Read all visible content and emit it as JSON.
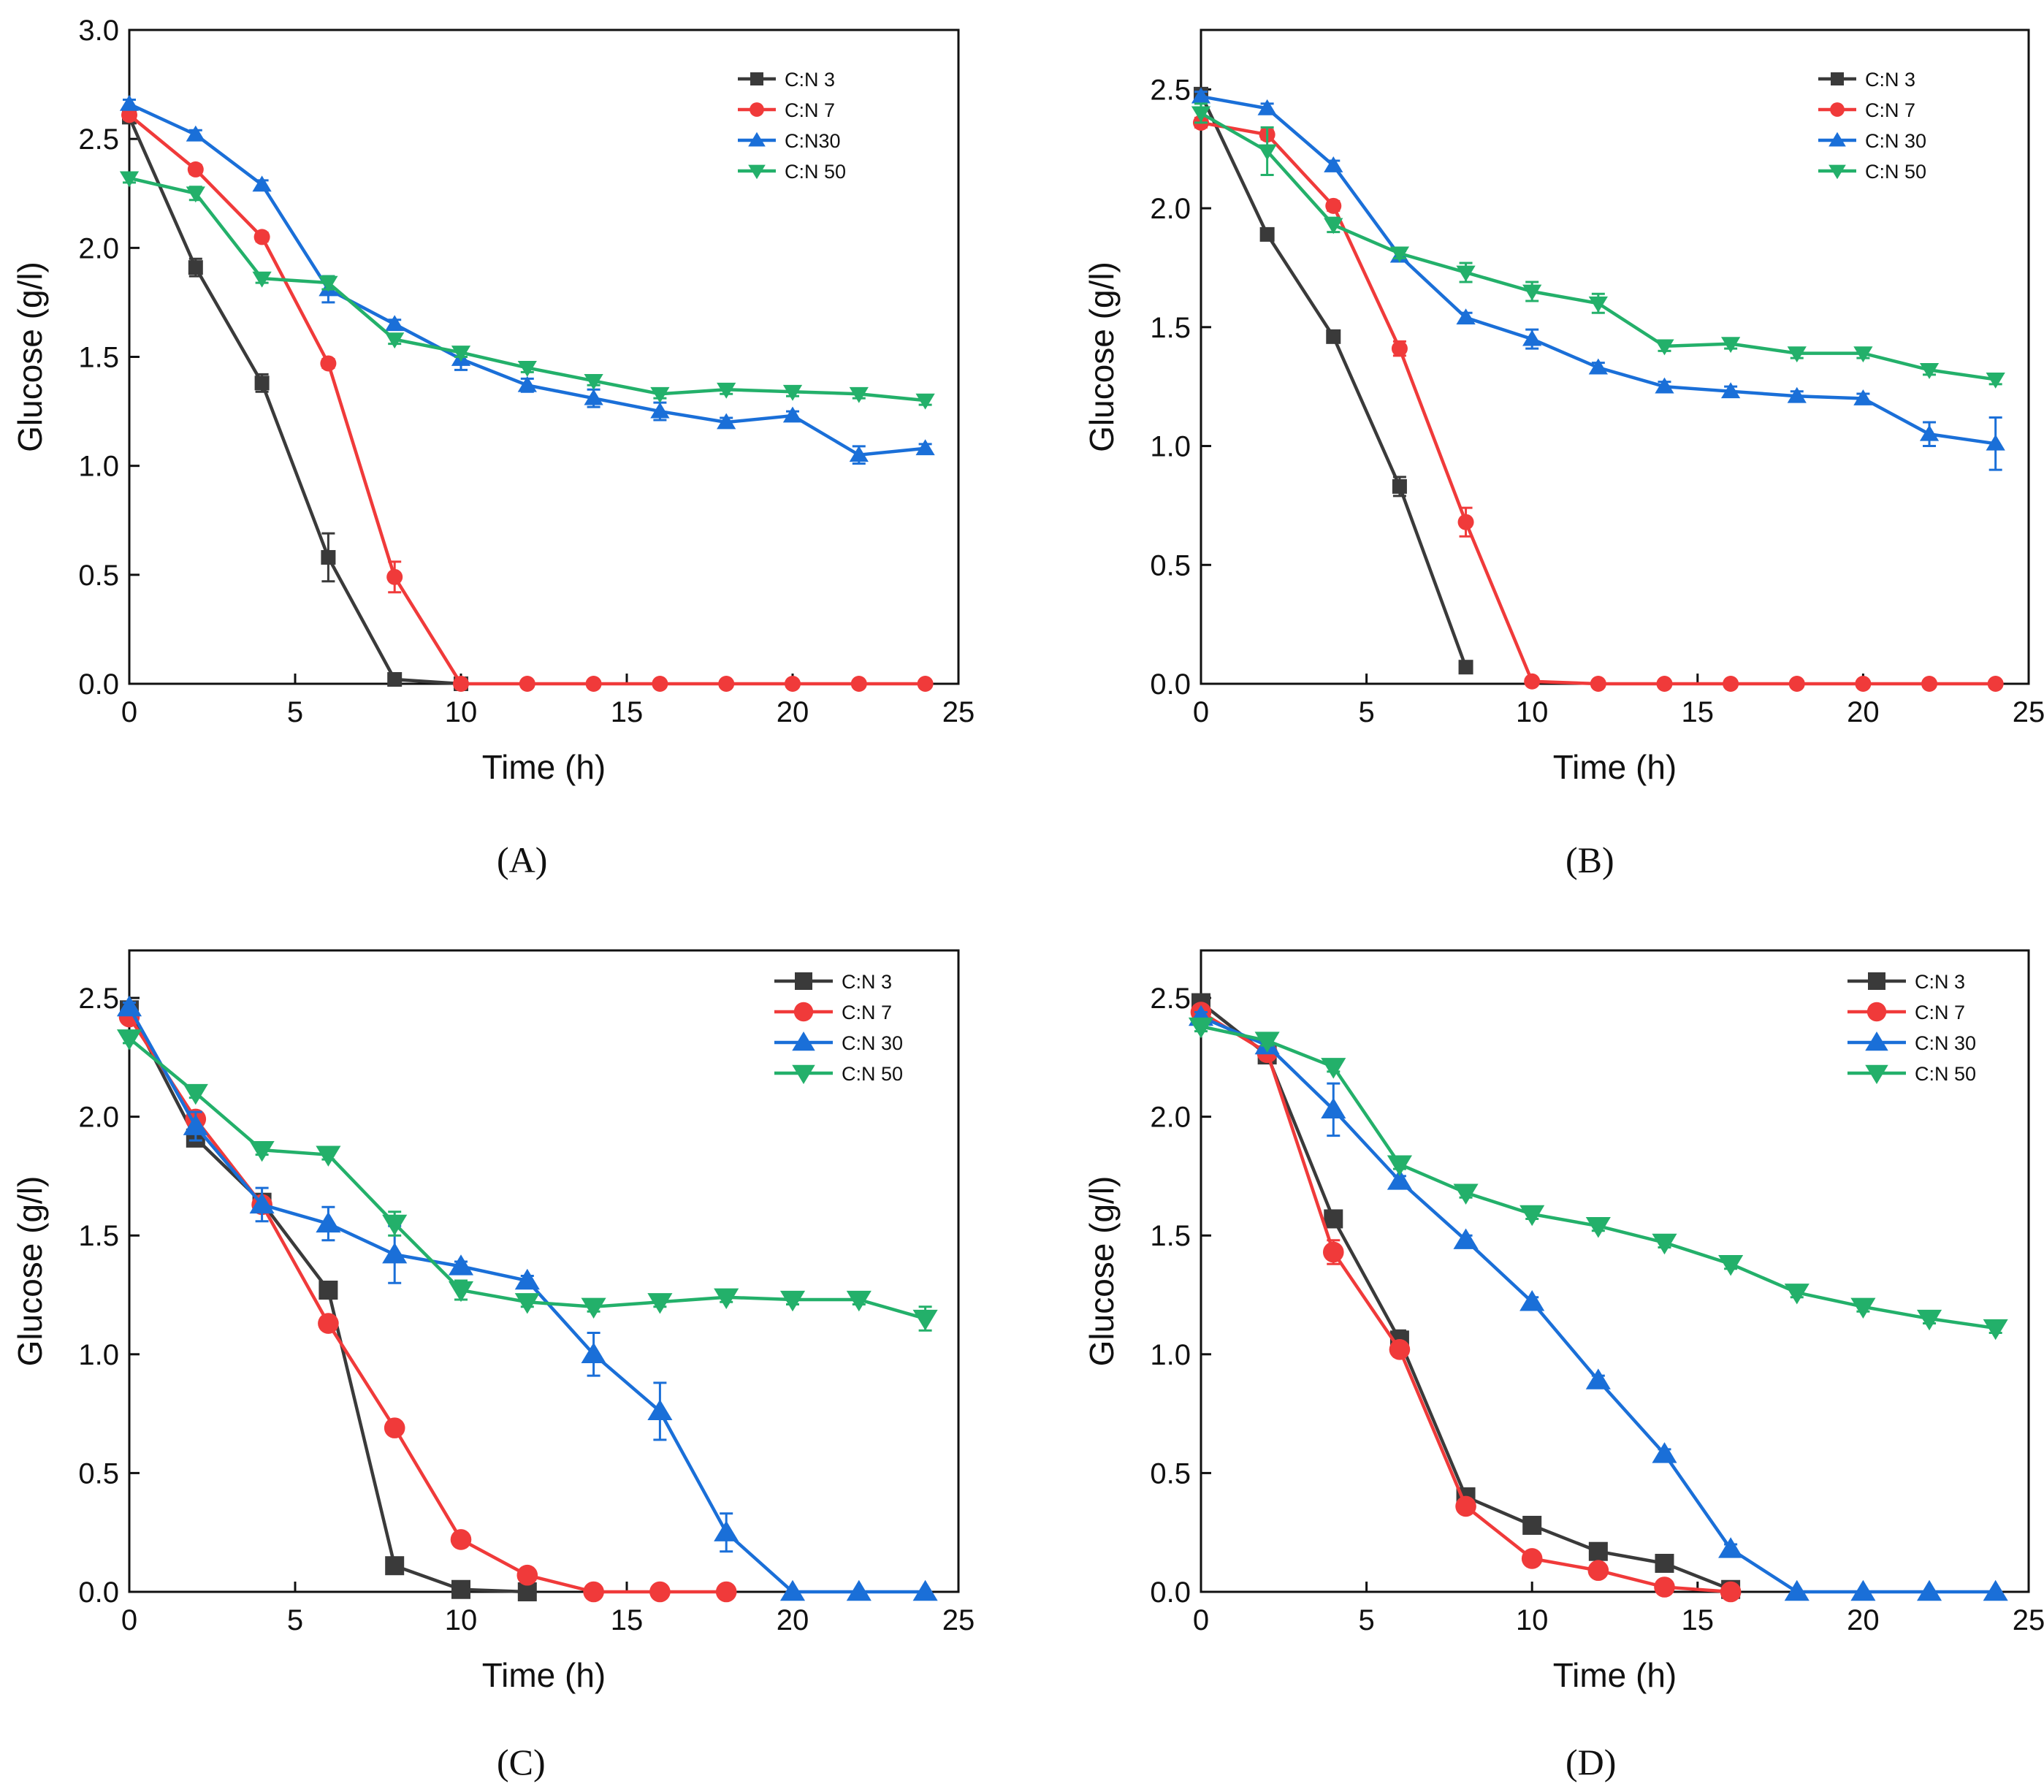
{
  "colors": {
    "C3": "#3a3a3a",
    "C7": "#f03a3a",
    "C30": "#1a6fd8",
    "C50": "#23b06a"
  },
  "chart_data": [
    {
      "type": "line",
      "caption": "(A)",
      "xlabel": "Time (h)",
      "ylabel": "Glucose (g/l)",
      "xlim": [
        0,
        25
      ],
      "ylim": [
        0,
        3.0
      ],
      "xticks": [
        "0",
        "5",
        "10",
        "15",
        "20",
        "25"
      ],
      "yticks": [
        "0.0",
        "0.5",
        "1.0",
        "1.5",
        "2.0",
        "2.5",
        "3.0"
      ],
      "legend_position": "top-right",
      "x": [
        0,
        2,
        4,
        6,
        8,
        10,
        12,
        14,
        16,
        18,
        20,
        22,
        24
      ],
      "series": [
        {
          "name": "C:N 3",
          "marker": "square",
          "color": "#3a3a3a",
          "values": [
            2.6,
            1.91,
            1.38,
            0.58,
            0.02,
            0,
            null,
            null,
            null,
            null,
            null,
            null,
            null
          ],
          "errors": [
            0.02,
            0.04,
            0.04,
            0.11,
            0,
            0,
            null,
            null,
            null,
            null,
            null,
            null,
            null
          ]
        },
        {
          "name": "C:N 7",
          "marker": "circle",
          "color": "#f03a3a",
          "values": [
            2.61,
            2.36,
            2.05,
            1.47,
            0.49,
            0,
            0,
            0,
            0,
            0,
            0,
            0,
            0
          ],
          "errors": [
            0.02,
            0.02,
            0.02,
            0.02,
            0.07,
            0,
            0,
            0,
            0,
            0,
            0,
            0,
            0
          ]
        },
        {
          "name": "C:N30",
          "marker": "triangle-up",
          "color": "#1a6fd8",
          "values": [
            2.66,
            2.52,
            2.29,
            1.81,
            1.65,
            1.49,
            1.37,
            1.31,
            1.25,
            1.2,
            1.23,
            1.05,
            1.08
          ],
          "errors": [
            0.02,
            0.02,
            0.02,
            0.06,
            0.02,
            0.05,
            0.03,
            0.04,
            0.04,
            0.02,
            0.02,
            0.04,
            0.02
          ]
        },
        {
          "name": "C:N 50",
          "marker": "triangle-down",
          "color": "#23b06a",
          "values": [
            2.32,
            2.25,
            1.86,
            1.84,
            1.58,
            1.52,
            1.45,
            1.39,
            1.33,
            1.35,
            1.34,
            1.33,
            1.3
          ],
          "errors": [
            0.02,
            0.03,
            0.02,
            0.03,
            0.02,
            0.02,
            0.02,
            0.02,
            0.02,
            0.02,
            0.02,
            0.02,
            0.02
          ]
        }
      ]
    },
    {
      "type": "line",
      "caption": "(B)",
      "xlabel": "Time (h)",
      "ylabel": "Glucose (g/l)",
      "xlim": [
        0,
        25
      ],
      "ylim": [
        0,
        2.75
      ],
      "xticks": [
        "0",
        "5",
        "10",
        "15",
        "20",
        "25"
      ],
      "yticks": [
        "0.0",
        "0.5",
        "1.0",
        "1.5",
        "2.0",
        "2.5"
      ],
      "legend_position": "top-right",
      "x": [
        0,
        2,
        4,
        6,
        8,
        10,
        12,
        14,
        16,
        18,
        20,
        22,
        24
      ],
      "series": [
        {
          "name": "C:N 3",
          "marker": "square",
          "color": "#3a3a3a",
          "values": [
            2.48,
            1.89,
            1.46,
            0.83,
            0.07,
            null,
            null,
            null,
            null,
            null,
            null,
            null,
            null
          ],
          "errors": [
            0.02,
            0.02,
            0.02,
            0.04,
            0,
            null,
            null,
            null,
            null,
            null,
            null,
            null,
            null
          ]
        },
        {
          "name": "C:N 7",
          "marker": "circle",
          "color": "#f03a3a",
          "values": [
            2.36,
            2.31,
            2.01,
            1.41,
            0.68,
            0.01,
            0,
            0,
            0,
            0,
            0,
            0,
            0
          ],
          "errors": [
            0.02,
            0.02,
            0.02,
            0.03,
            0.06,
            0,
            0,
            0,
            0,
            0,
            0,
            0,
            0
          ]
        },
        {
          "name": "C:N 30",
          "marker": "triangle-up",
          "color": "#1a6fd8",
          "values": [
            2.47,
            2.42,
            2.18,
            1.8,
            1.54,
            1.45,
            1.33,
            1.25,
            1.23,
            1.21,
            1.2,
            1.05,
            1.01
          ],
          "errors": [
            0.02,
            0.02,
            0.02,
            0.02,
            0.02,
            0.04,
            0.02,
            0.02,
            0.02,
            0.02,
            0.02,
            0.05,
            0.11
          ]
        },
        {
          "name": "C:N 50",
          "marker": "triangle-down",
          "color": "#23b06a",
          "values": [
            2.4,
            2.24,
            1.93,
            1.81,
            1.73,
            1.65,
            1.6,
            1.42,
            1.43,
            1.39,
            1.39,
            1.32,
            1.28
          ],
          "errors": [
            0.04,
            0.1,
            0.03,
            0.02,
            0.04,
            0.04,
            0.04,
            0.02,
            0.02,
            0.02,
            0.02,
            0.02,
            0.02
          ]
        }
      ]
    },
    {
      "type": "line",
      "caption": "(C)",
      "xlabel": "Time (h)",
      "ylabel": "Glucose (g/l)",
      "xlim": [
        0,
        25
      ],
      "ylim": [
        0,
        2.7
      ],
      "xticks": [
        "0",
        "5",
        "10",
        "15",
        "20",
        "25"
      ],
      "yticks": [
        "0.0",
        "0.5",
        "1.0",
        "1.5",
        "2.0",
        "2.5"
      ],
      "legend_position": "top-right",
      "x": [
        0,
        2,
        4,
        6,
        8,
        10,
        12,
        14,
        16,
        18,
        20,
        22,
        24
      ],
      "series": [
        {
          "name": "C:N 3",
          "marker": "square",
          "color": "#3a3a3a",
          "values": [
            2.45,
            1.91,
            1.64,
            1.27,
            0.11,
            0.01,
            0,
            null,
            null,
            null,
            null,
            null,
            null
          ],
          "errors": [
            0.02,
            0.03,
            0.02,
            0.02,
            0.02,
            0,
            0,
            null,
            null,
            null,
            null,
            null,
            null
          ]
        },
        {
          "name": "C:N 7",
          "marker": "circle",
          "color": "#f03a3a",
          "values": [
            2.42,
            1.99,
            1.63,
            1.13,
            0.69,
            0.22,
            0.07,
            0,
            0,
            0,
            null,
            null,
            null
          ],
          "errors": [
            0.02,
            0.03,
            0.02,
            0.02,
            0.02,
            0.02,
            0.02,
            0,
            0,
            0,
            null,
            null,
            null
          ]
        },
        {
          "name": "C:N 30",
          "marker": "triangle-up",
          "color": "#1a6fd8",
          "values": [
            2.46,
            1.96,
            1.63,
            1.55,
            1.42,
            1.37,
            1.31,
            1.0,
            0.76,
            0.25,
            0,
            0,
            0
          ],
          "errors": [
            0.02,
            0.06,
            0.07,
            0.07,
            0.12,
            0.02,
            0.02,
            0.09,
            0.12,
            0.08,
            0,
            0,
            0
          ]
        },
        {
          "name": "C:N 50",
          "marker": "triangle-down",
          "color": "#23b06a",
          "values": [
            2.33,
            2.1,
            1.86,
            1.84,
            1.55,
            1.27,
            1.22,
            1.2,
            1.22,
            1.24,
            1.23,
            1.23,
            1.15
          ],
          "errors": [
            0.02,
            0.02,
            0.02,
            0.02,
            0.05,
            0.04,
            0.02,
            0.02,
            0.02,
            0.02,
            0.02,
            0.02,
            0.05
          ]
        }
      ]
    },
    {
      "type": "line",
      "caption": "(D)",
      "xlabel": "Time (h)",
      "ylabel": "Glucose (g/l)",
      "xlim": [
        0,
        25
      ],
      "ylim": [
        0,
        2.7
      ],
      "xticks": [
        "0",
        "5",
        "10",
        "15",
        "20",
        "25"
      ],
      "yticks": [
        "0.0",
        "0.5",
        "1.0",
        "1.5",
        "2.0",
        "2.5"
      ],
      "legend_position": "top-right",
      "x": [
        0,
        2,
        4,
        6,
        8,
        10,
        12,
        14,
        16,
        18,
        20,
        22,
        24
      ],
      "series": [
        {
          "name": "C:N 3",
          "marker": "square",
          "color": "#3a3a3a",
          "values": [
            2.48,
            2.26,
            1.57,
            1.06,
            0.4,
            0.28,
            0.17,
            0.12,
            0.01,
            null,
            null,
            null,
            null
          ],
          "errors": [
            0.02,
            0.02,
            0.02,
            0.04,
            0.02,
            0.02,
            0.02,
            0.02,
            0,
            null,
            null,
            null,
            null
          ]
        },
        {
          "name": "C:N 7",
          "marker": "circle",
          "color": "#f03a3a",
          "values": [
            2.44,
            2.27,
            1.43,
            1.02,
            0.36,
            0.14,
            0.09,
            0.02,
            0,
            null,
            null,
            null,
            null
          ],
          "errors": [
            0.02,
            0.02,
            0.05,
            0.03,
            0.02,
            0.02,
            0.02,
            0.02,
            0,
            null,
            null,
            null,
            null
          ]
        },
        {
          "name": "C:N 30",
          "marker": "triangle-up",
          "color": "#1a6fd8",
          "values": [
            2.42,
            2.3,
            2.03,
            1.73,
            1.48,
            1.22,
            0.89,
            0.58,
            0.18,
            0,
            0,
            0,
            0
          ],
          "errors": [
            0.02,
            0.02,
            0.11,
            0.02,
            0.02,
            0.02,
            0.02,
            0.02,
            0.02,
            0,
            0,
            0,
            0
          ]
        },
        {
          "name": "C:N 50",
          "marker": "triangle-down",
          "color": "#23b06a",
          "values": [
            2.38,
            2.32,
            2.21,
            1.8,
            1.68,
            1.59,
            1.54,
            1.47,
            1.38,
            1.26,
            1.2,
            1.15,
            1.11
          ],
          "errors": [
            0.02,
            0.02,
            0.02,
            0.02,
            0.02,
            0.02,
            0.02,
            0.02,
            0.02,
            0.02,
            0.02,
            0.02,
            0.02
          ]
        }
      ]
    }
  ]
}
